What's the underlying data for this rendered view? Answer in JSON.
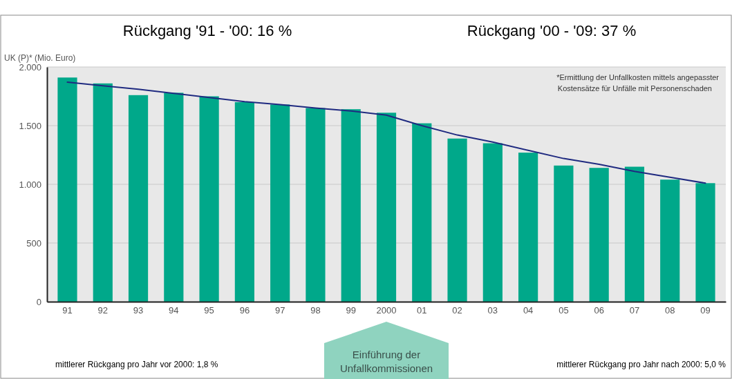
{
  "chart_data": {
    "type": "bar",
    "ylabel": "UK (P)* (Mio. Euro)",
    "categories": [
      "91",
      "92",
      "93",
      "94",
      "95",
      "96",
      "97",
      "98",
      "99",
      "2000",
      "01",
      "02",
      "03",
      "04",
      "05",
      "06",
      "07",
      "08",
      "09"
    ],
    "series": [
      {
        "color": "#00a88a",
        "values": [
          1910,
          1860,
          1760,
          1780,
          1750,
          1700,
          1680,
          1650,
          1640,
          1610,
          1520,
          1390,
          1350,
          1270,
          1160,
          1140,
          1150,
          1040,
          1010
        ]
      },
      {
        "type": "line",
        "color": "#1f2a80",
        "values": [
          1870,
          1840,
          1810,
          1775,
          1740,
          1705,
          1680,
          1650,
          1625,
          1590,
          1500,
          1420,
          1360,
          1290,
          1220,
          1170,
          1110,
          1060,
          1010
        ]
      }
    ],
    "ylim": [
      0,
      2000
    ],
    "yticks": [
      0,
      500,
      {
        "value": 1000,
        "label": "1.000"
      },
      {
        "value": 1500,
        "label": "1.500"
      },
      {
        "value": 2000,
        "label": "2.000"
      }
    ],
    "grid": "y",
    "annotations": [
      "Rückgang '91 - '00: 16 %",
      "Rückgang '00 - '09: 37 %",
      "*Ermittlung der Unfallkosten mittels angepasster Kostensätze für Unfälle mit Personenschaden",
      "mittlerer Rückgang pro Jahr vor 2000: 1,8 %",
      "Einführung der Unfallkommissionen",
      "mittlerer Rückgang pro Jahr nach 2000: 5,0 %"
    ]
  }
}
